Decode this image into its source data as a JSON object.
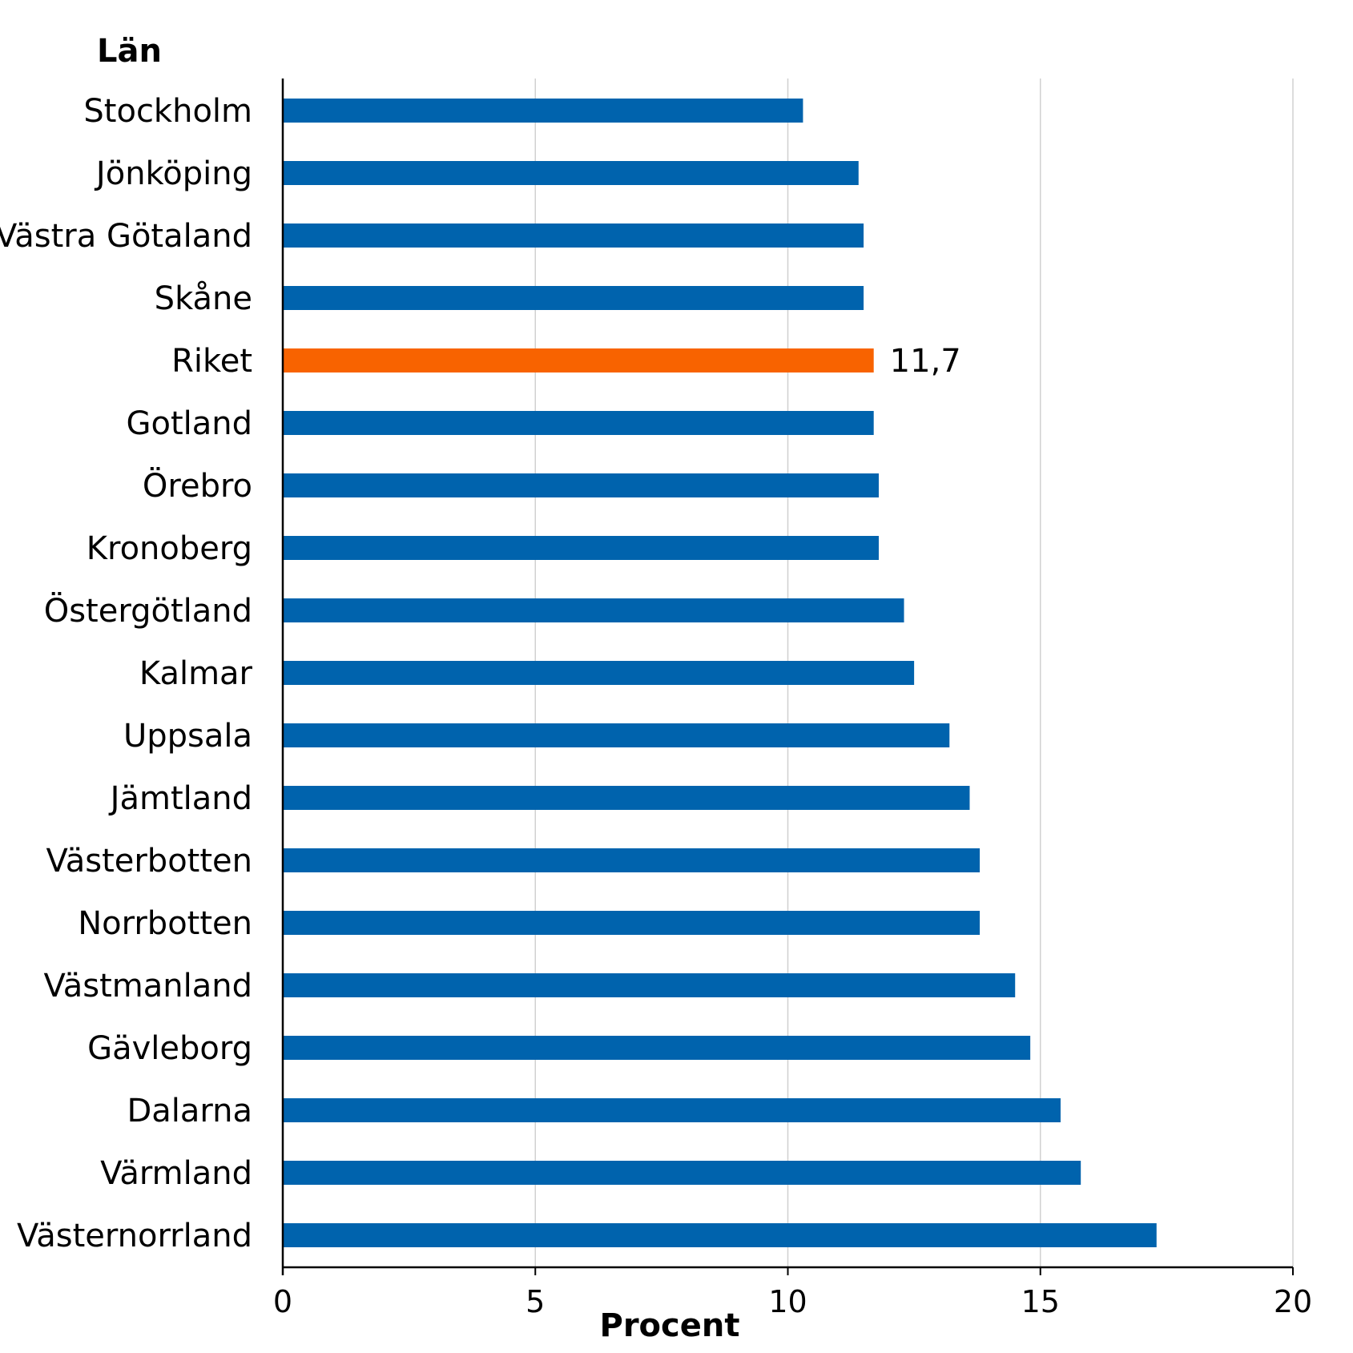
{
  "chart_data": {
    "type": "bar",
    "orientation": "horizontal",
    "title": "",
    "ylabel": "Län",
    "xlabel": "Procent",
    "xlim": [
      0,
      20
    ],
    "xticks": [
      0,
      5,
      10,
      15,
      20
    ],
    "grid": "vertical",
    "legend": "none",
    "categories": [
      "Stockholm",
      "Jönköping",
      "Västra Götaland",
      "Skåne",
      "Riket",
      "Gotland",
      "Örebro",
      "Kronoberg",
      "Östergötland",
      "Kalmar",
      "Uppsala",
      "Jämtland",
      "Västerbotten",
      "Norrbotten",
      "Västmanland",
      "Gävleborg",
      "Dalarna",
      "Värmland",
      "Västernorrland"
    ],
    "values": [
      10.3,
      11.4,
      11.5,
      11.5,
      11.7,
      11.7,
      11.8,
      11.8,
      12.3,
      12.5,
      13.2,
      13.6,
      13.8,
      13.8,
      14.5,
      14.8,
      15.4,
      15.8,
      17.3
    ],
    "highlight": {
      "category": "Riket",
      "label": "11,7"
    },
    "colors": {
      "bar": "#0063AD",
      "highlight": "#F86300",
      "grid": "#D0D0D0",
      "axis": "#000000"
    }
  }
}
